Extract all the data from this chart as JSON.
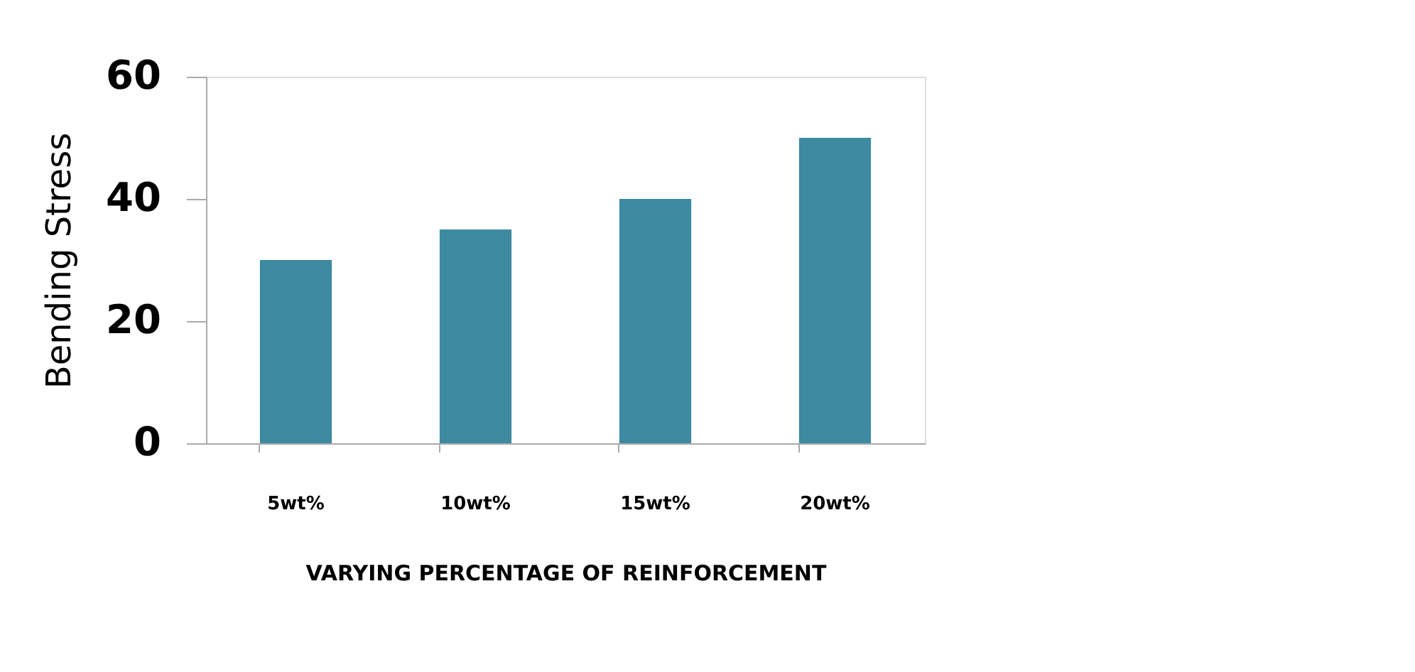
{
  "chart_data": {
    "type": "bar",
    "xlabel": "VARYING PERCENTAGE OF REINFORCEMENT",
    "ylabel": "Bending Stress",
    "categories": [
      "5wt%",
      "10wt%",
      "15wt%",
      "20wt%"
    ],
    "values": [
      30,
      35,
      40,
      50
    ],
    "color": "#3d8aa1",
    "ylim": [
      0,
      60
    ],
    "yticks": [
      0,
      20,
      40,
      60
    ],
    "grid": false
  }
}
